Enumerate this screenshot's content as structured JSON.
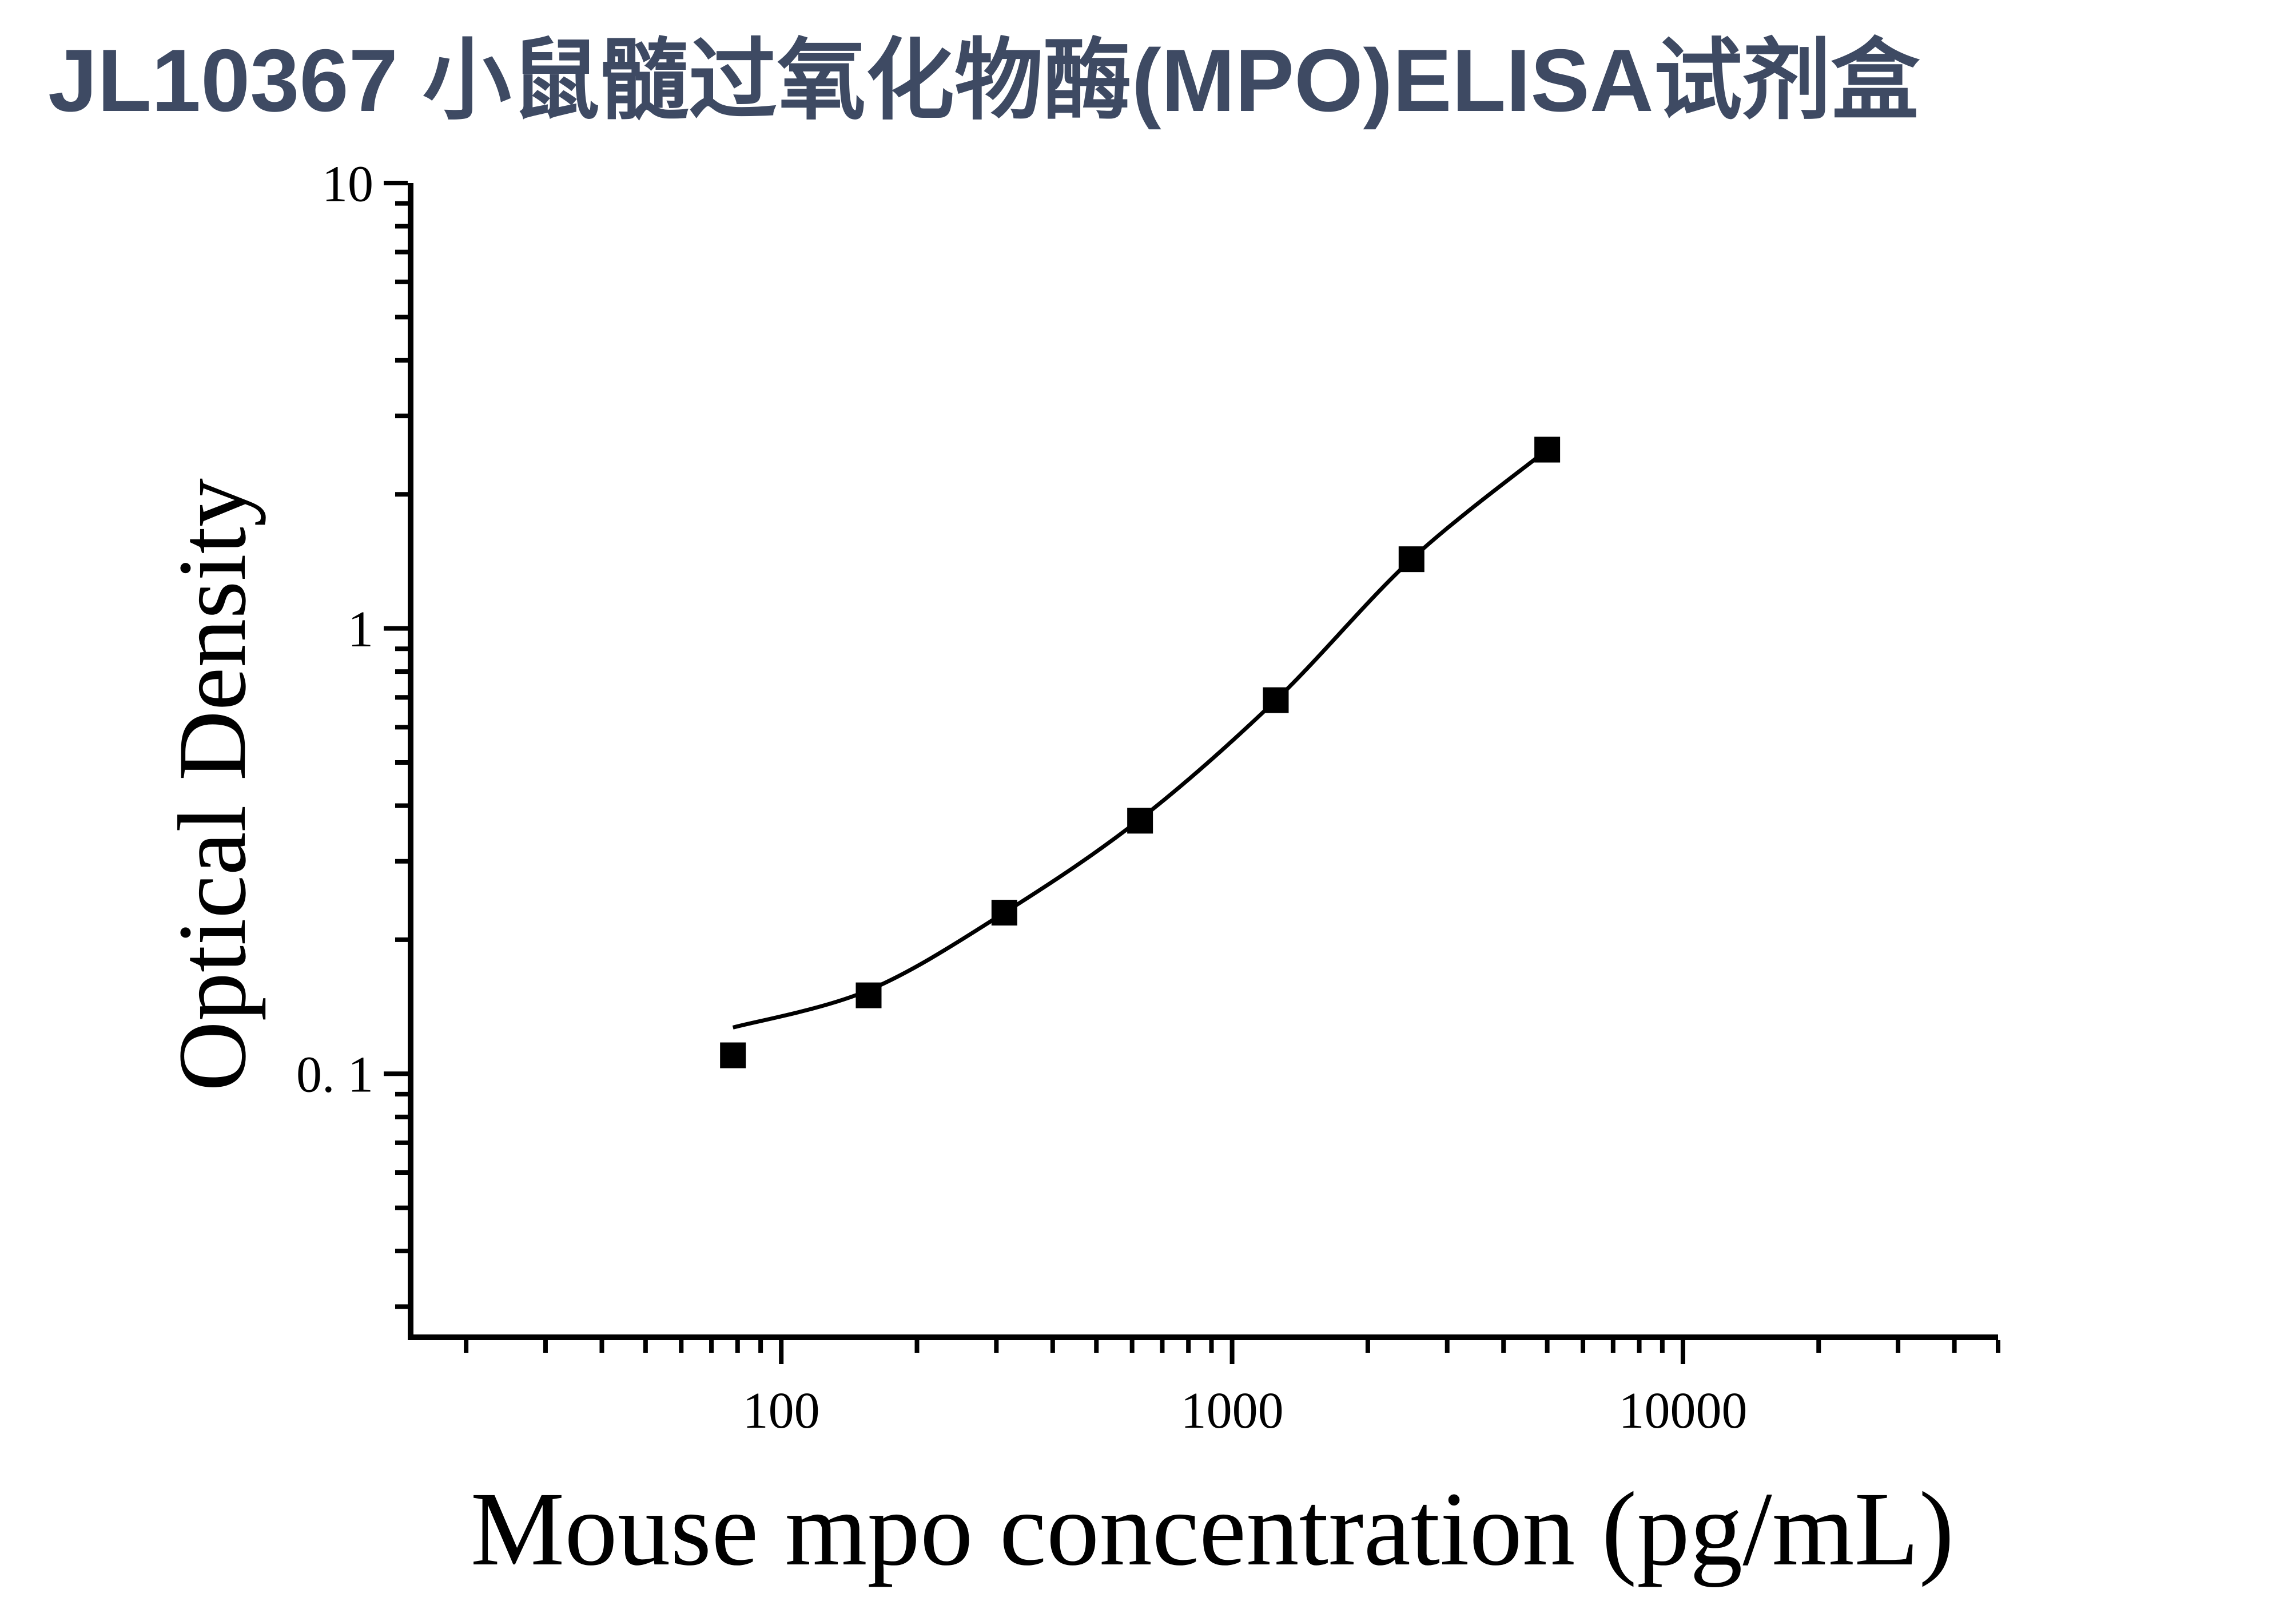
{
  "title": {
    "text": "JL10367 小鼠髓过氧化物酶(MPO)ELISA试剂盒",
    "color": "#3E4A63"
  },
  "chart_data": {
    "type": "scatter",
    "title": "",
    "xlabel": "Mouse mpo concentration (pg/mL)",
    "ylabel": "Optical Density",
    "x_scale": "log",
    "y_scale": "log",
    "xlim": [
      15.06,
      50000
    ],
    "ylim": [
      0.0256,
      10
    ],
    "grid": false,
    "legend": null,
    "x_major_ticks": [
      100,
      1000,
      10000
    ],
    "x_major_tick_labels": [
      "100",
      "1000",
      "10000"
    ],
    "y_major_ticks": [
      10,
      1,
      0.1
    ],
    "y_major_tick_labels": [
      "10",
      "1",
      "0. 1"
    ],
    "marker_color": "#000000",
    "curve_color": "#000000",
    "series": [
      {
        "name": "standard-curve-points",
        "marker": "square",
        "x": [
          78.13,
          156.25,
          312.5,
          625,
          1250,
          2500,
          5000
        ],
        "y": [
          0.11,
          0.15,
          0.23,
          0.37,
          0.69,
          1.43,
          2.52
        ]
      }
    ],
    "fit_curve": {
      "name": "4PL-fit-curve",
      "points": [
        [
          78.13,
          0.127
        ],
        [
          156.25,
          0.154
        ],
        [
          312.5,
          0.23
        ],
        [
          625,
          0.373
        ],
        [
          1250,
          0.69
        ],
        [
          2500,
          1.43
        ],
        [
          5000,
          2.52
        ]
      ]
    }
  }
}
